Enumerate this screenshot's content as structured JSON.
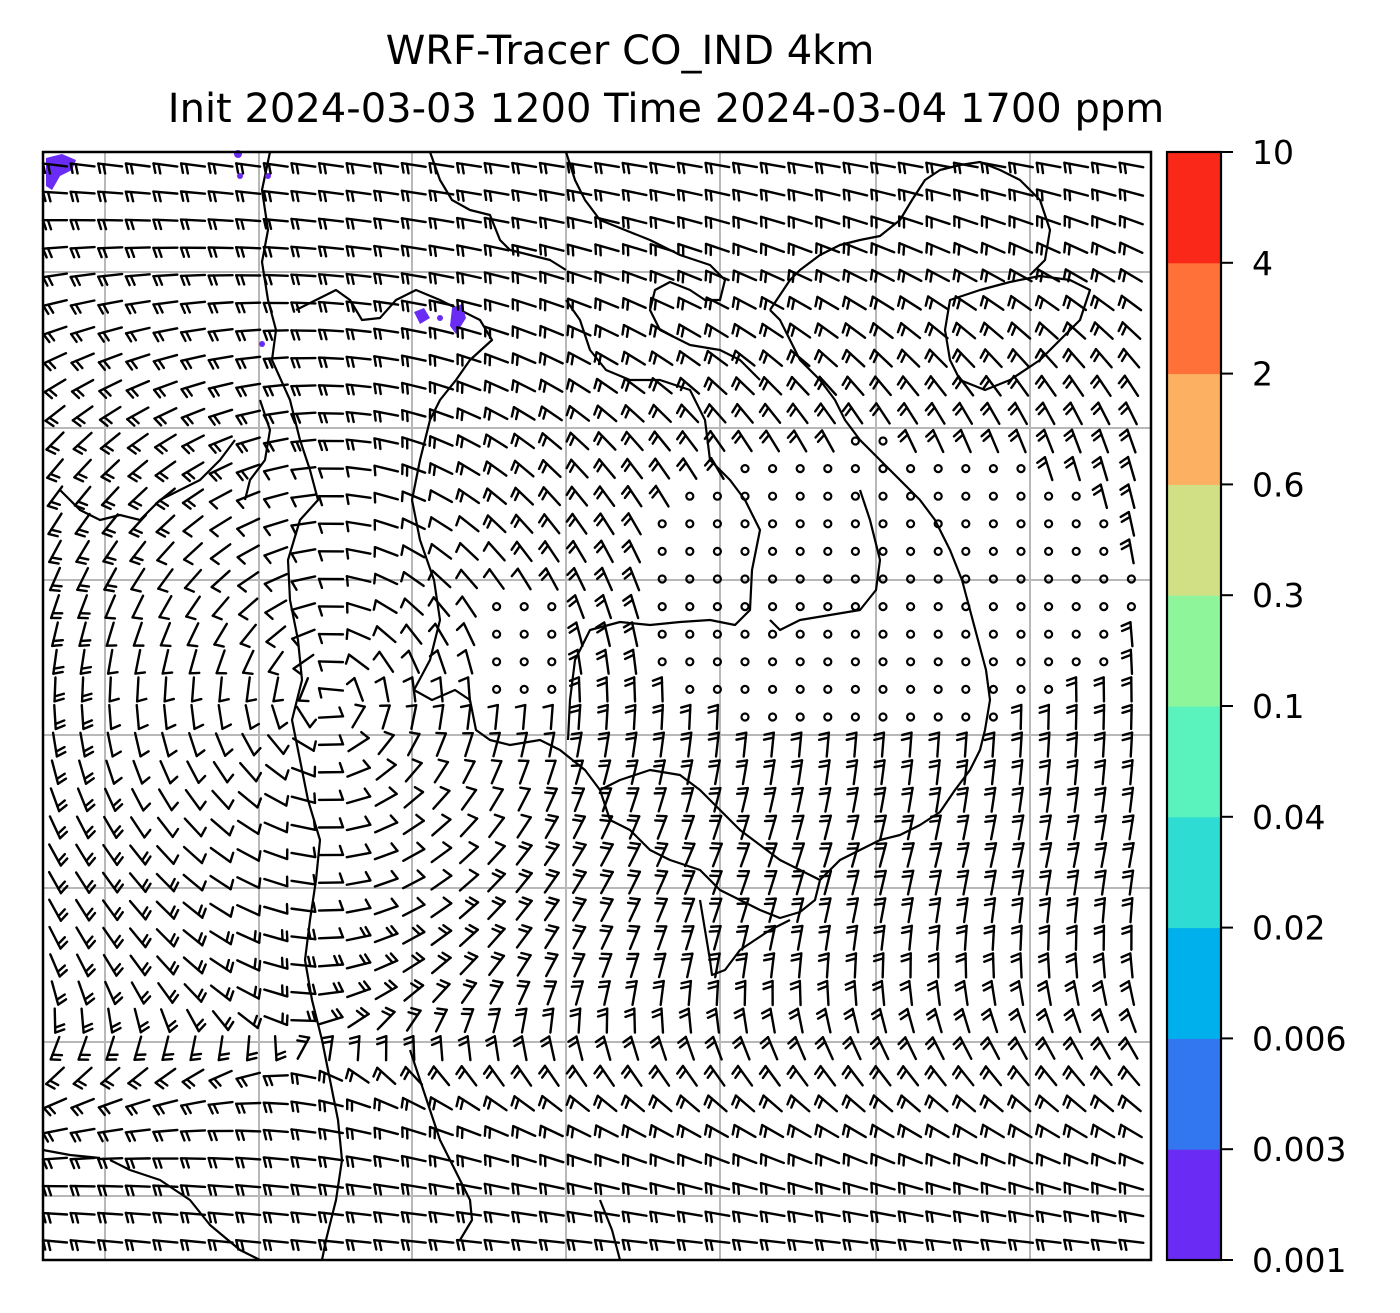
{
  "title": {
    "line1": "WRF-Tracer CO_IND 4km",
    "line2": "Init 2024-03-03 1200 Time 2024-03-04 1700 ppm"
  },
  "colorbar": {
    "levels": [
      "0.001",
      "0.003",
      "0.006",
      "0.02",
      "0.04",
      "0.1",
      "0.3",
      "0.6",
      "2",
      "4",
      "10"
    ],
    "colors": [
      "#6a2cf5",
      "#3377f0",
      "#00b0ec",
      "#2edcd4",
      "#5af2bd",
      "#8ef59b",
      "#d1e084",
      "#fcb061",
      "#ff7138",
      "#fa2818"
    ]
  },
  "map": {
    "field": "CO_IND tracer concentration (ppm) with wind barbs",
    "overlay": "wind-barbs",
    "calm_marker": "circle",
    "gridlines": true,
    "coastlines": true,
    "tracer_patch_color": "#6a2cf5"
  }
}
